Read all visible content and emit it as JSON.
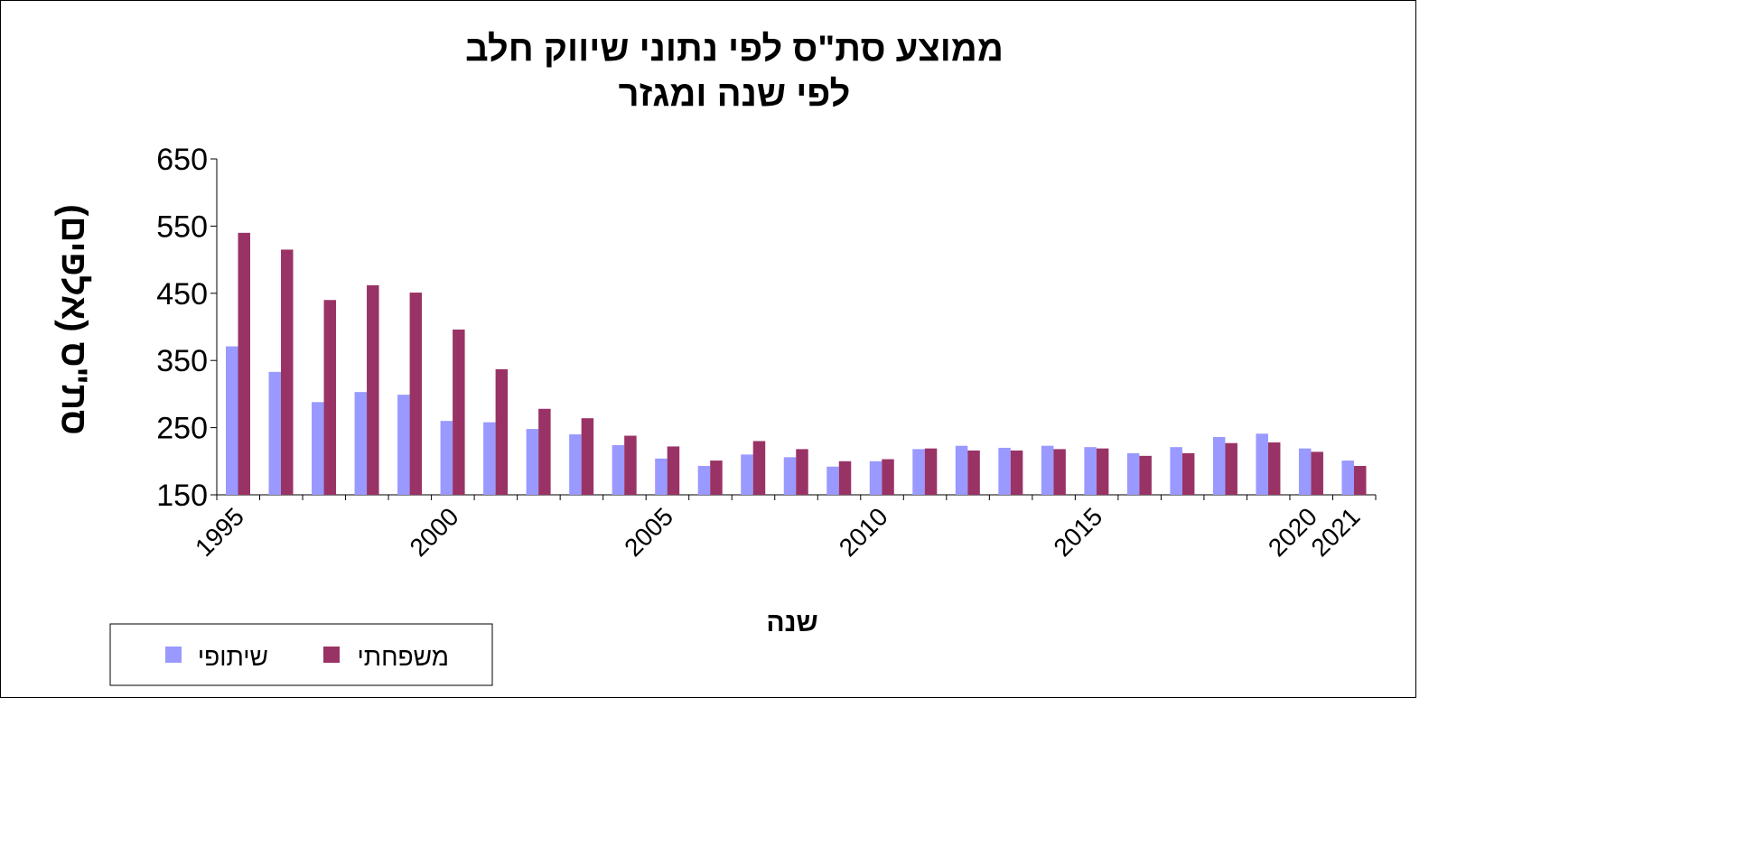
{
  "chart_data": {
    "type": "bar",
    "title": [
      "ממוצע סת\"ס לפי נתוני שיווק חלב",
      "לפי שנה ומגזר"
    ],
    "xlabel": "שנה",
    "ylabel": "סת\"ס (אלפים)",
    "ylim": [
      150,
      650
    ],
    "yticks": [
      150,
      250,
      350,
      450,
      550,
      650
    ],
    "grid": false,
    "legend_position": "bottom-left",
    "categories": [
      1995,
      1996,
      1997,
      1998,
      1999,
      2000,
      2001,
      2002,
      2003,
      2004,
      2005,
      2006,
      2007,
      2008,
      2009,
      2010,
      2011,
      2012,
      2013,
      2014,
      2015,
      2016,
      2017,
      2018,
      2019,
      2020,
      2021
    ],
    "xtick_labels": [
      "1995",
      "2000",
      "2005",
      "2010",
      "2015",
      "2020",
      "2021"
    ],
    "series": [
      {
        "name": "שיתופי",
        "color": "#9999ff",
        "values": [
          371,
          333,
          288,
          303,
          299,
          260,
          258,
          248,
          240,
          224,
          204,
          193,
          210,
          206,
          192,
          200,
          218,
          223,
          220,
          223,
          221,
          212,
          221,
          236,
          241,
          219,
          201
        ]
      },
      {
        "name": "משפחתי",
        "color": "#993366",
        "values": [
          540,
          515,
          440,
          462,
          451,
          396,
          337,
          278,
          264,
          238,
          222,
          201,
          230,
          218,
          200,
          203,
          219,
          216,
          216,
          218,
          219,
          208,
          212,
          227,
          228,
          214,
          193
        ]
      }
    ]
  }
}
